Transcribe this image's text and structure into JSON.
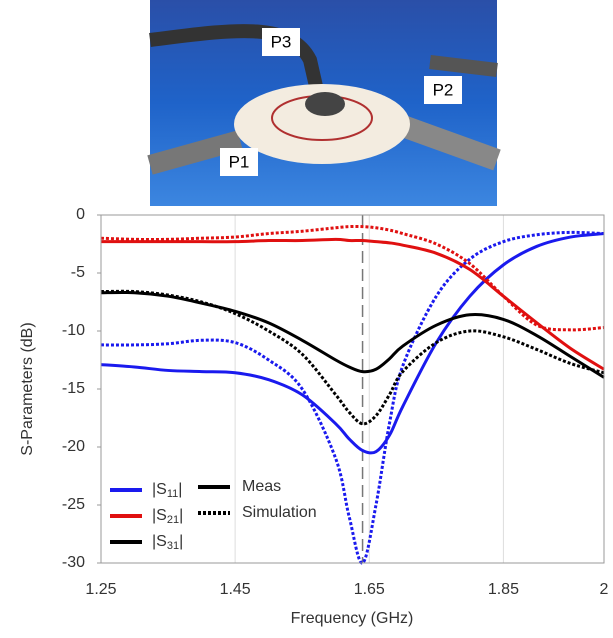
{
  "photo": {
    "port_labels": [
      "P3",
      "P2",
      "P1"
    ]
  },
  "chart_data": {
    "type": "line",
    "x_label": "Frequency (GHz)",
    "y_label": "S-Parameters (dB)",
    "x": [
      1.25,
      1.3,
      1.35,
      1.4,
      1.45,
      1.5,
      1.55,
      1.6,
      1.62,
      1.64,
      1.66,
      1.68,
      1.7,
      1.75,
      1.8,
      1.85,
      1.9,
      1.95,
      2.0
    ],
    "xlim": [
      1.25,
      2.0
    ],
    "xticks": [
      1.25,
      1.45,
      1.65,
      1.85,
      2
    ],
    "ylim": [
      -30,
      0
    ],
    "yticks": [
      0,
      -5,
      -10,
      -15,
      -20,
      -25,
      -30
    ],
    "grid": "x",
    "marker_x": 1.64,
    "series": [
      {
        "name": "|S11|",
        "style": "Meas",
        "color": "#1a1aee",
        "dash": "solid",
        "values": [
          -12.9,
          -13.1,
          -13.4,
          -13.5,
          -13.6,
          -14.2,
          -15.5,
          -18,
          -19.3,
          -20.3,
          -20.4,
          -19,
          -16.5,
          -11,
          -7,
          -4.3,
          -2.7,
          -1.9,
          -1.6
        ]
      },
      {
        "name": "|S11|",
        "style": "Simulation",
        "color": "#1a1aee",
        "dash": "dotted",
        "values": [
          -11.2,
          -11.2,
          -11.1,
          -10.8,
          -11,
          -12.5,
          -15,
          -21,
          -26,
          -30,
          -25,
          -18,
          -13,
          -7,
          -3.8,
          -2.3,
          -1.7,
          -1.5,
          -1.6
        ]
      },
      {
        "name": "|S21|",
        "style": "Meas",
        "color": "#e01010",
        "dash": "solid",
        "values": [
          -2.3,
          -2.3,
          -2.3,
          -2.3,
          -2.3,
          -2.2,
          -2.2,
          -2.1,
          -2.2,
          -2.2,
          -2.3,
          -2.4,
          -2.6,
          -3.3,
          -4.7,
          -7,
          -9.3,
          -11.5,
          -13.3
        ]
      },
      {
        "name": "|S21|",
        "style": "Simulation",
        "color": "#e01010",
        "dash": "dotted",
        "values": [
          -2.0,
          -2.1,
          -2.1,
          -2.0,
          -1.9,
          -1.6,
          -1.4,
          -1.1,
          -1.0,
          -1.0,
          -1.1,
          -1.3,
          -1.6,
          -2.5,
          -4.2,
          -7,
          -9.5,
          -9.9,
          -9.7
        ]
      },
      {
        "name": "|S31|",
        "style": "Meas",
        "color": "#000000",
        "dash": "solid",
        "values": [
          -6.7,
          -6.7,
          -7,
          -7.6,
          -8.3,
          -9.3,
          -10.8,
          -12.5,
          -13.1,
          -13.5,
          -13.3,
          -12.4,
          -11.3,
          -9.5,
          -8.6,
          -9,
          -10.4,
          -12.2,
          -14
        ]
      },
      {
        "name": "|S31|",
        "style": "Simulation",
        "color": "#000000",
        "dash": "dotted",
        "values": [
          -6.6,
          -6.6,
          -6.9,
          -7.5,
          -8.5,
          -10,
          -12,
          -15.5,
          -17,
          -18,
          -17.3,
          -15.5,
          -13.5,
          -11,
          -10,
          -10.5,
          -11.6,
          -12.8,
          -13.6
        ]
      }
    ]
  }
}
